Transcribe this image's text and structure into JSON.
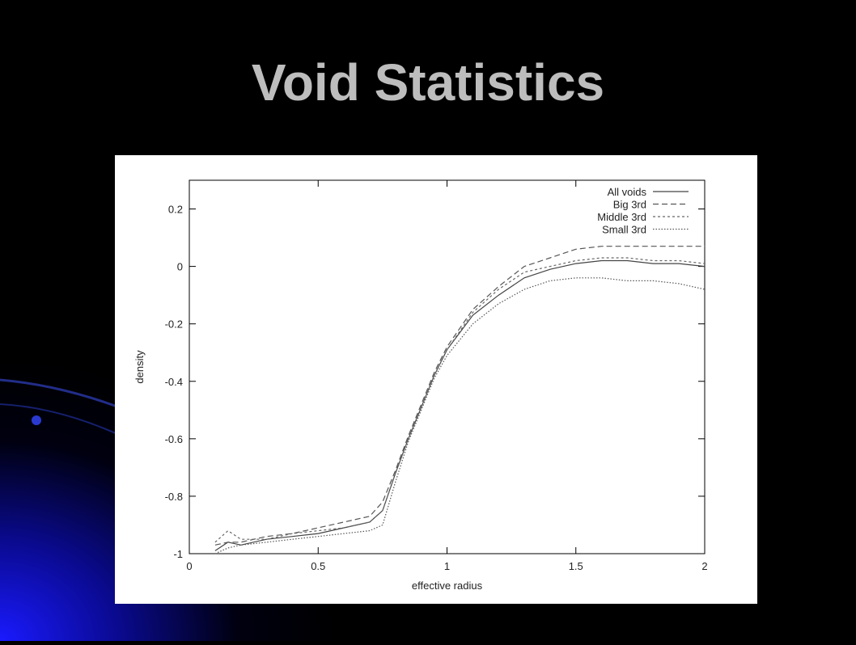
{
  "chart_data": {
    "type": "line",
    "title": "Void Statistics",
    "x_label": "effective radius",
    "y_label": "density",
    "x": [
      0.1,
      0.15,
      0.2,
      0.3,
      0.4,
      0.5,
      0.6,
      0.7,
      0.75,
      0.8,
      0.85,
      0.9,
      0.95,
      1,
      1.1,
      1.2,
      1.3,
      1.4,
      1.5,
      1.6,
      1.7,
      1.8,
      1.9,
      2
    ],
    "series": [
      {
        "name": "All voids",
        "color": "#444444",
        "line_style": "solid",
        "values": [
          -0.99,
          -0.96,
          -0.97,
          -0.95,
          -0.94,
          -0.93,
          -0.91,
          -0.89,
          -0.85,
          -0.72,
          -0.6,
          -0.49,
          -0.38,
          -0.29,
          -0.17,
          -0.1,
          -0.04,
          -0.01,
          0.01,
          0.02,
          0.02,
          0.01,
          0.01,
          0
        ]
      },
      {
        "name": "Big 3rd",
        "color": "#555555",
        "line_style": "dashed",
        "values": [
          -0.97,
          -0.96,
          -0.96,
          -0.94,
          -0.93,
          -0.91,
          -0.89,
          -0.87,
          -0.82,
          -0.71,
          -0.59,
          -0.48,
          -0.37,
          -0.28,
          -0.15,
          -0.07,
          0,
          0.03,
          0.06,
          0.07,
          0.07,
          0.07,
          0.07,
          0.07
        ]
      },
      {
        "name": "Middle 3rd",
        "color": "#666666",
        "line_style": "short-dashed",
        "values": [
          -0.96,
          -0.92,
          -0.95,
          -0.95,
          -0.93,
          -0.92,
          -0.91,
          -0.89,
          -0.85,
          -0.72,
          -0.6,
          -0.49,
          -0.38,
          -0.29,
          -0.16,
          -0.08,
          -0.02,
          0,
          0.02,
          0.03,
          0.03,
          0.02,
          0.02,
          0.01
        ]
      },
      {
        "name": "Small 3rd",
        "color": "#555555",
        "line_style": "dotted",
        "values": [
          -1,
          -0.98,
          -0.97,
          -0.96,
          -0.95,
          -0.94,
          -0.93,
          -0.92,
          -0.9,
          -0.75,
          -0.61,
          -0.5,
          -0.39,
          -0.31,
          -0.2,
          -0.13,
          -0.08,
          -0.05,
          -0.04,
          -0.04,
          -0.05,
          -0.05,
          -0.06,
          -0.08
        ]
      }
    ],
    "xlim": [
      0,
      2
    ],
    "ylim": [
      -1,
      0.3
    ],
    "xticks": [
      0,
      0.5,
      1,
      1.5,
      2
    ],
    "yticks": [
      -1,
      -0.8,
      -0.6,
      -0.4,
      -0.2,
      0,
      0.2
    ],
    "grid": false,
    "legend": "top-right"
  }
}
